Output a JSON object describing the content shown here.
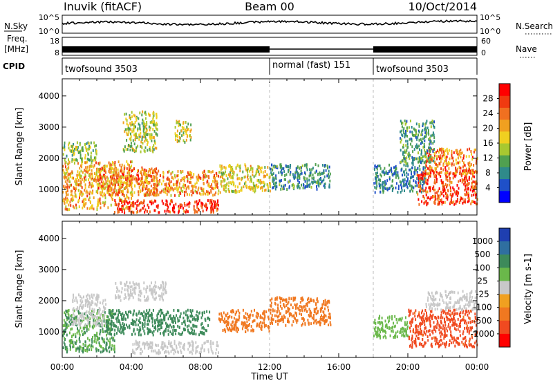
{
  "header": {
    "station": "Inuvik (fitACF)",
    "beam": "Beam 00",
    "date": "10/Oct/2014"
  },
  "strips": {
    "noise": {
      "left_label": "N.Sky",
      "right_label": "N.Search",
      "left_ticks": [
        "10^5",
        "10^0"
      ],
      "right_ticks": [
        "10^5",
        "10^0"
      ]
    },
    "freq": {
      "left_label_1": "Freq.",
      "left_label_2": "[MHz]",
      "right_label": "Nave",
      "left_ticks": [
        "18",
        "8"
      ],
      "right_ticks": [
        "60",
        "0"
      ]
    },
    "cpid": {
      "label": "CPID",
      "segments": [
        {
          "start": 0,
          "end": 12,
          "text": "twofsound 3503"
        },
        {
          "start": 12,
          "end": 18,
          "text": "normal (fast) 151"
        },
        {
          "start": 18,
          "end": 24,
          "text": "twofsound 3503"
        }
      ]
    }
  },
  "chart_data": [
    {
      "type": "heatmap",
      "panel": "power",
      "ylabel": "Slant Range [km]",
      "ylim": [
        180,
        4550
      ],
      "yticks": [
        1000,
        2000,
        3000,
        4000
      ],
      "xlim": [
        0,
        24
      ],
      "colorbar": {
        "label": "Power [dB]",
        "range": [
          0,
          32
        ],
        "ticks": [
          4,
          8,
          12,
          16,
          20,
          24,
          28
        ],
        "colors": [
          "#0000ff",
          "#1f50c8",
          "#2f8a8a",
          "#50a050",
          "#a8c830",
          "#f0d020",
          "#f0a020",
          "#f07020",
          "#f03a10",
          "#ff0000"
        ]
      },
      "regions": [
        {
          "t0": 0.0,
          "t1": 4.0,
          "r0": 350,
          "r1": 1900,
          "value": 20
        },
        {
          "t0": 0.0,
          "t1": 2.0,
          "r0": 1900,
          "r1": 2500,
          "value": 14
        },
        {
          "t0": 2.0,
          "t1": 5.5,
          "r0": 800,
          "r1": 1700,
          "value": 23
        },
        {
          "t0": 3.0,
          "t1": 9.0,
          "r0": 250,
          "r1": 650,
          "value": 29
        },
        {
          "t0": 4.5,
          "t1": 9.0,
          "r0": 800,
          "r1": 1600,
          "value": 22
        },
        {
          "t0": 9.0,
          "t1": 12.0,
          "r0": 900,
          "r1": 1800,
          "value": 17
        },
        {
          "t0": 12.0,
          "t1": 15.5,
          "r0": 1000,
          "r1": 1800,
          "value": 9
        },
        {
          "t0": 3.5,
          "t1": 5.5,
          "r0": 2200,
          "r1": 3500,
          "value": 15
        },
        {
          "t0": 6.5,
          "t1": 7.5,
          "r0": 2500,
          "r1": 3200,
          "value": 16
        },
        {
          "t0": 18.0,
          "t1": 21.0,
          "r0": 900,
          "r1": 1800,
          "value": 8
        },
        {
          "t0": 20.5,
          "t1": 24.0,
          "r0": 500,
          "r1": 1600,
          "value": 27
        },
        {
          "t0": 21.0,
          "t1": 24.0,
          "r0": 1500,
          "r1": 2300,
          "value": 23
        },
        {
          "t0": 19.5,
          "t1": 21.5,
          "r0": 1800,
          "r1": 3200,
          "value": 10
        }
      ]
    },
    {
      "type": "heatmap",
      "panel": "velocity",
      "ylabel": "Slant Range [km]",
      "ylim": [
        180,
        4550
      ],
      "yticks": [
        1000,
        2000,
        3000,
        4000
      ],
      "xlim": [
        0,
        24
      ],
      "xlabel": "Time UT",
      "xtick_labels": [
        "00:00",
        "04:00",
        "08:00",
        "12:00",
        "16:00",
        "20:00",
        "00:00"
      ],
      "colorbar": {
        "label": "Velocity [m s-1]",
        "tick_labels": [
          "1000",
          "500",
          "100",
          "25",
          "-25",
          "-100",
          "-500",
          "-1000"
        ],
        "colors": [
          "#1f3fb0",
          "#2f6fa0",
          "#3d8a5a",
          "#6ab84a",
          "#c8c8c8",
          "#f0a020",
          "#f07820",
          "#f04a20",
          "#ff0000"
        ]
      },
      "regions": [
        {
          "t0": 0.0,
          "t1": 3.0,
          "r0": 350,
          "r1": 1700,
          "value": 100
        },
        {
          "t0": 0.5,
          "t1": 2.5,
          "r0": 1200,
          "r1": 2200,
          "value": 0
        },
        {
          "t0": 2.5,
          "t1": 8.5,
          "r0": 900,
          "r1": 1700,
          "value": 150
        },
        {
          "t0": 4.0,
          "t1": 9.0,
          "r0": 300,
          "r1": 700,
          "value": 0
        },
        {
          "t0": 3.0,
          "t1": 6.0,
          "r0": 2000,
          "r1": 2600,
          "value": 0
        },
        {
          "t0": 9.0,
          "t1": 12.0,
          "r0": 1000,
          "r1": 1700,
          "value": -150
        },
        {
          "t0": 12.0,
          "t1": 15.5,
          "r0": 1200,
          "r1": 2100,
          "value": -150
        },
        {
          "t0": 18.0,
          "t1": 20.0,
          "r0": 800,
          "r1": 1500,
          "value": 60
        },
        {
          "t0": 20.0,
          "t1": 24.0,
          "r0": 500,
          "r1": 1700,
          "value": -600
        },
        {
          "t0": 21.0,
          "t1": 24.0,
          "r0": 1700,
          "r1": 2300,
          "value": 0
        }
      ]
    }
  ]
}
